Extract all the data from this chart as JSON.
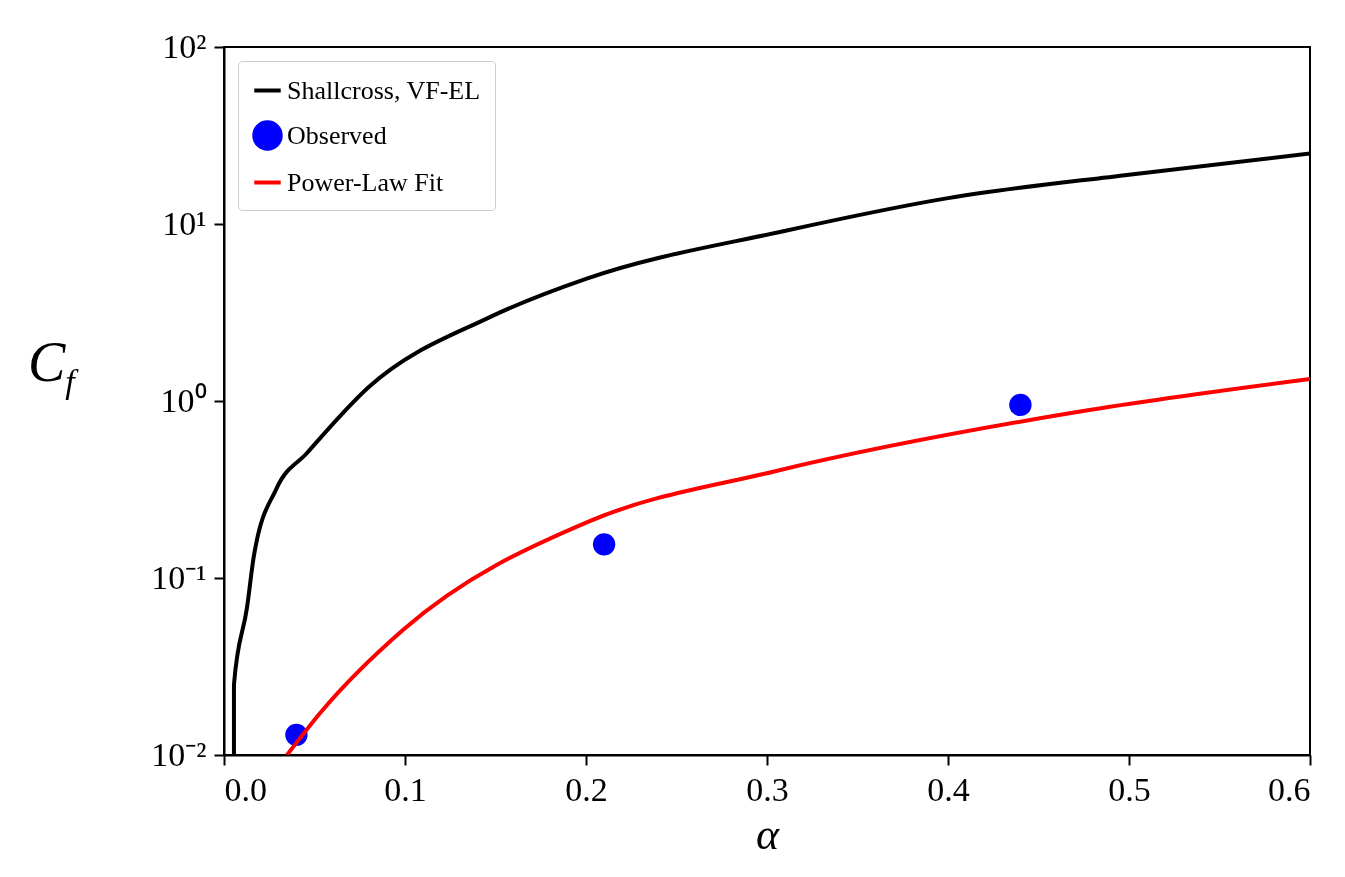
{
  "chart_data": {
    "type": "line",
    "xlabel": "α",
    "ylabel": "C$_{f}$",
    "xlim": [
      0,
      0.6
    ],
    "xticks": [
      {
        "value": 0,
        "label": "0.0"
      },
      0.1,
      0.2,
      0.3,
      0.4,
      0.5,
      0.6
    ],
    "ylim": [
      0.01,
      100
    ],
    "yticks": [
      {
        "value": 0.01,
        "label": "10⁻²"
      },
      {
        "value": 0.1,
        "label": "10⁻¹"
      },
      {
        "value": 1,
        "label": "10⁰"
      },
      {
        "value": 10,
        "label": "10¹"
      },
      {
        "value": 100,
        "label": "10²"
      }
    ],
    "log": "y",
    "grid": false,
    "legend": "top left",
    "series": [
      {
        "name": "Shallcross, VF-EL",
        "color": "#000000",
        "x": [
          0.0055,
          0.0055,
          0.0127,
          0.0166,
          0.029,
          0.046,
          0.08,
          0.146,
          0.2,
          0.309,
          0.4,
          0.5,
          0.6
        ],
        "values": [
          0.01,
          0.025,
          0.068,
          0.135,
          0.32,
          0.51,
          1.2,
          2.95,
          4.9,
          9.1,
          14,
          19,
          25
        ]
      },
      {
        "name": "Observed",
        "type": "scatter",
        "marker": "circle",
        "color": "#0000ff",
        "x": [
          0.04,
          0.21,
          0.44
        ],
        "values": [
          0.013,
          0.155,
          0.95
        ]
      },
      {
        "name": "Power-Law Fit",
        "color": "#ff0000",
        "x": [
          0.0348,
          0.0536,
          0.099,
          0.2017,
          0.304,
          0.468,
          0.6
        ],
        "values": [
          0.01,
          0.0175,
          0.051,
          0.209,
          0.4,
          0.855,
          1.33
        ]
      }
    ]
  }
}
